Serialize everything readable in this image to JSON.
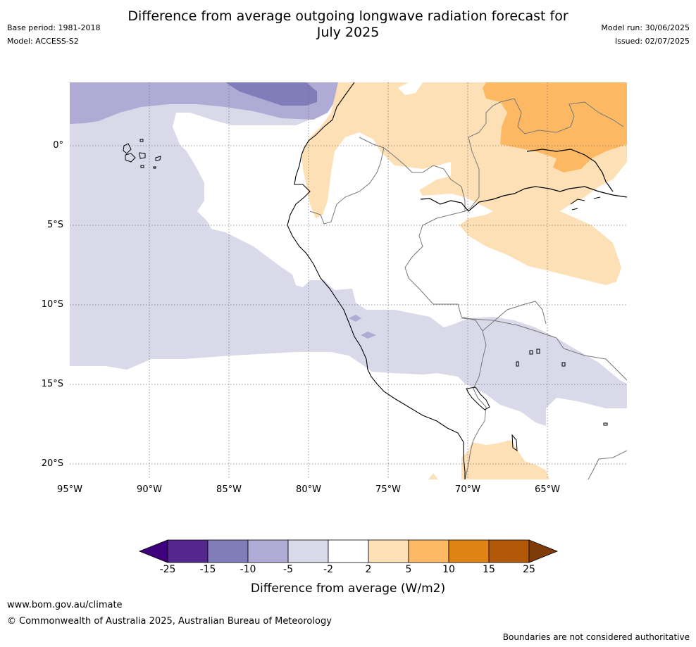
{
  "header": {
    "title_line1": "Difference from average outgoing longwave radiation forecast for",
    "title_line2": "July 2025",
    "base_period": "Base period: 1981-2018",
    "model": "Model: ACCESS-S2",
    "model_run": "Model run: 30/06/2025",
    "issued": "Issued: 02/07/2025"
  },
  "map": {
    "lat_labels": [
      "0°",
      "5°S",
      "10°S",
      "15°S",
      "20°S"
    ],
    "lon_labels": [
      "95°W",
      "90°W",
      "85°W",
      "80°W",
      "75°W",
      "70°W",
      "65°W"
    ],
    "colors": {
      "neg_25": "#3f007d",
      "neg_15": "#54278f",
      "neg_10": "#807dba",
      "neg_5": "#b0abd4",
      "neg_2": "#d9d9ea",
      "neutral": "#ffffff",
      "pos_2": "#fee0b6",
      "pos_5": "#fdb863",
      "pos_10": "#e08214",
      "pos_15": "#b35806",
      "pos_25": "#7f3b08"
    }
  },
  "colorbar": {
    "ticks": [
      "-25",
      "-15",
      "-10",
      "-5",
      "-2",
      "2",
      "5",
      "10",
      "15",
      "25"
    ],
    "colors": [
      "#3f007d",
      "#54278f",
      "#807dba",
      "#b0abd4",
      "#d9d9ea",
      "#ffffff",
      "#fee0b6",
      "#fdb863",
      "#e08214",
      "#b35806",
      "#7f3b08"
    ],
    "label": "Difference from average (W/m2)"
  },
  "footer": {
    "url": "www.bom.gov.au/climate",
    "copyright": "© Commonwealth of Australia 2025, Australian Bureau of Meteorology",
    "disclaimer": "Boundaries are not considered authoritative"
  }
}
